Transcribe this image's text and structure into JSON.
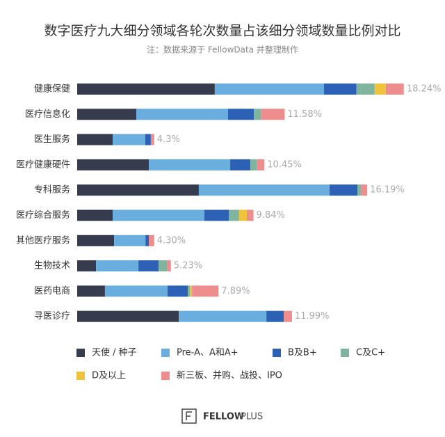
{
  "chart_data": {
    "type": "stacked_barh",
    "title": "数字医疗九大细分领域各轮次数量占该细分领域数量比例对比",
    "subtitle": "注：数据来源于 FellowData 并整理制作",
    "categories": [
      "健康保健",
      "医疗信息化",
      "医生服务",
      "医疗健康硬件",
      "专科服务",
      "医疗综合服务",
      "其他医疗服务",
      "生物技术",
      "医药电商",
      "寻医诊疗"
    ],
    "series": [
      {
        "name": "天使 / 种子",
        "color": "#363b4d",
        "values": [
          7.68,
          3.3,
          1.98,
          4.0,
          6.79,
          1.98,
          2.06,
          1.05,
          1.55,
          5.67
        ]
      },
      {
        "name": "Pre-A、A和A+",
        "color": "#6aaee0",
        "values": [
          6.09,
          5.12,
          1.82,
          4.54,
          7.3,
          5.12,
          1.75,
          2.37,
          3.49,
          4.89
        ]
      },
      {
        "name": "B及B+",
        "color": "#2d61b5",
        "values": [
          1.82,
          1.44,
          0.31,
          1.13,
          1.55,
          1.36,
          0.19,
          1.13,
          1.13,
          0.97
        ]
      },
      {
        "name": "C及C+",
        "color": "#7fb59e",
        "values": [
          1.01,
          0.39,
          0,
          0.35,
          0.19,
          0.58,
          0,
          0.47,
          0.12,
          0
        ]
      },
      {
        "name": "D及以上",
        "color": "#f0c33c",
        "values": [
          0.62,
          0,
          0,
          0,
          0,
          0.43,
          0,
          0,
          0.12,
          0
        ]
      },
      {
        "name": "新三板、并购、战投、IPO",
        "color": "#ee8d8d",
        "values": [
          1.01,
          1.33,
          0.19,
          0.43,
          0.36,
          0.37,
          0.3,
          0.21,
          1.48,
          0.46
        ]
      }
    ],
    "totals": [
      18.24,
      11.58,
      4.3,
      10.45,
      16.19,
      9.84,
      4.3,
      5.23,
      7.89,
      11.99
    ],
    "total_labels": [
      "18.24%",
      "11.58%",
      "4.3%",
      "10.45%",
      "16.19%",
      "9.84%",
      "4.30%",
      "5.23%",
      "7.89%",
      "11.99%"
    ],
    "brand_bold": "FELLOW",
    "brand_light": "PLUS"
  }
}
